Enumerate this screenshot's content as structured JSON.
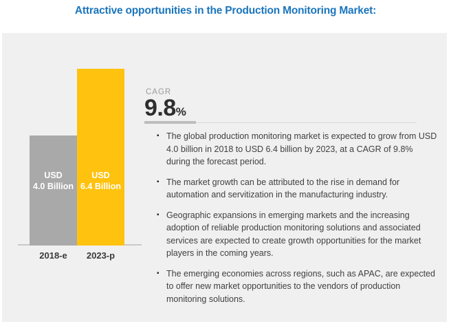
{
  "title": "Attractive opportunities in the Production Monitoring Market:",
  "colors": {
    "title_blue": "#1B75BC",
    "panel_background": "#F0F0F1",
    "bar_2018_gray": "#A9A9A9",
    "bar_2023_yellow": "#FFC20E",
    "body_text": "#404040",
    "cagr_label_gray": "#9A9A9A",
    "cagr_value_dark": "#2E2E2E"
  },
  "chart": {
    "bars": [
      {
        "category": "2018-e",
        "value_label": "USD\n4.0 Billion",
        "value": 4.0,
        "color": "#A9A9A9"
      },
      {
        "category": "2023-p",
        "value_label": "USD\n6.4 Billion",
        "value": 6.4,
        "color": "#FFC20E"
      }
    ]
  },
  "cagr": {
    "label": "CAGR",
    "value": "9.8",
    "percent_sign": "%"
  },
  "bullets": [
    {
      "marker": "▪",
      "text": "The global production monitoring market is expected to grow from USD\n4.0 billion in 2018 to USD 6.4 billion by 2023, at a CAGR of 9.8%\nduring the forecast period."
    },
    {
      "marker": "▪",
      "text": "The market growth can be attributed to the rise in demand for\nautomation and servitization in the manufacturing industry."
    },
    {
      "marker": "▪",
      "text": "Geographic expansions in emerging markets and the increasing\nadoption of reliable production monitoring solutions and associated\nservices are expected to create growth opportunities for the market\nplayers in the coming years."
    },
    {
      "marker": "▪",
      "text": "The emerging economies across regions, such as APAC, are expected\nto offer new market opportunities to the vendors of production\nmonitoring solutions."
    }
  ],
  "chart_data": {
    "type": "bar",
    "title": "Attractive opportunities in the Production Monitoring Market:",
    "categories": [
      "2018-e",
      "2023-p"
    ],
    "values": [
      4.0,
      6.4
    ],
    "unit": "USD Billion",
    "bar_labels": [
      "USD 4.0 Billion",
      "USD 6.4 Billion"
    ],
    "bar_colors": [
      "#A9A9A9",
      "#FFC20E"
    ],
    "annotations": [
      "CAGR 9.8%"
    ],
    "xlabel": "",
    "ylabel": "",
    "ylim": [
      0,
      6.6
    ],
    "grid": false,
    "legend": false
  }
}
